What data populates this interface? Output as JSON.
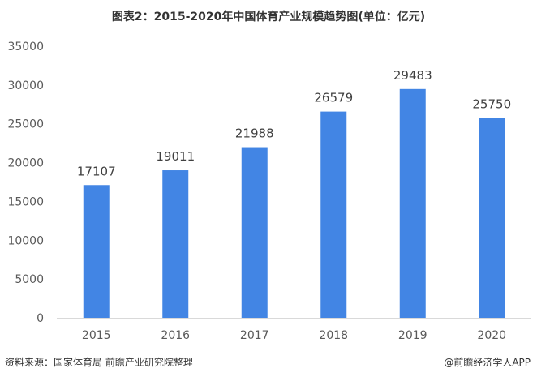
{
  "chart_data": {
    "type": "bar",
    "title": "图表2：2015-2020年中国体育产业规模趋势图(单位：亿元)",
    "categories": [
      "2015",
      "2016",
      "2017",
      "2018",
      "2019",
      "2020"
    ],
    "values": [
      17107,
      19011,
      21988,
      26579,
      29483,
      25750
    ],
    "data_labels": [
      "17107",
      "19011",
      "21988",
      "26579",
      "29483",
      "25750"
    ],
    "ylim": [
      0,
      35000
    ],
    "yticks": [
      0,
      5000,
      10000,
      15000,
      20000,
      25000,
      30000,
      35000
    ],
    "ytick_labels": [
      "0",
      "5000",
      "10000",
      "15000",
      "20000",
      "25000",
      "30000",
      "35000"
    ],
    "grid": false,
    "bar_color": "#4285E4",
    "axis_color": "#D9D9D9"
  },
  "footer": {
    "source": "资料来源：国家体育局 前瞻产业研究院整理",
    "brand": "@前瞻经济学人APP"
  }
}
